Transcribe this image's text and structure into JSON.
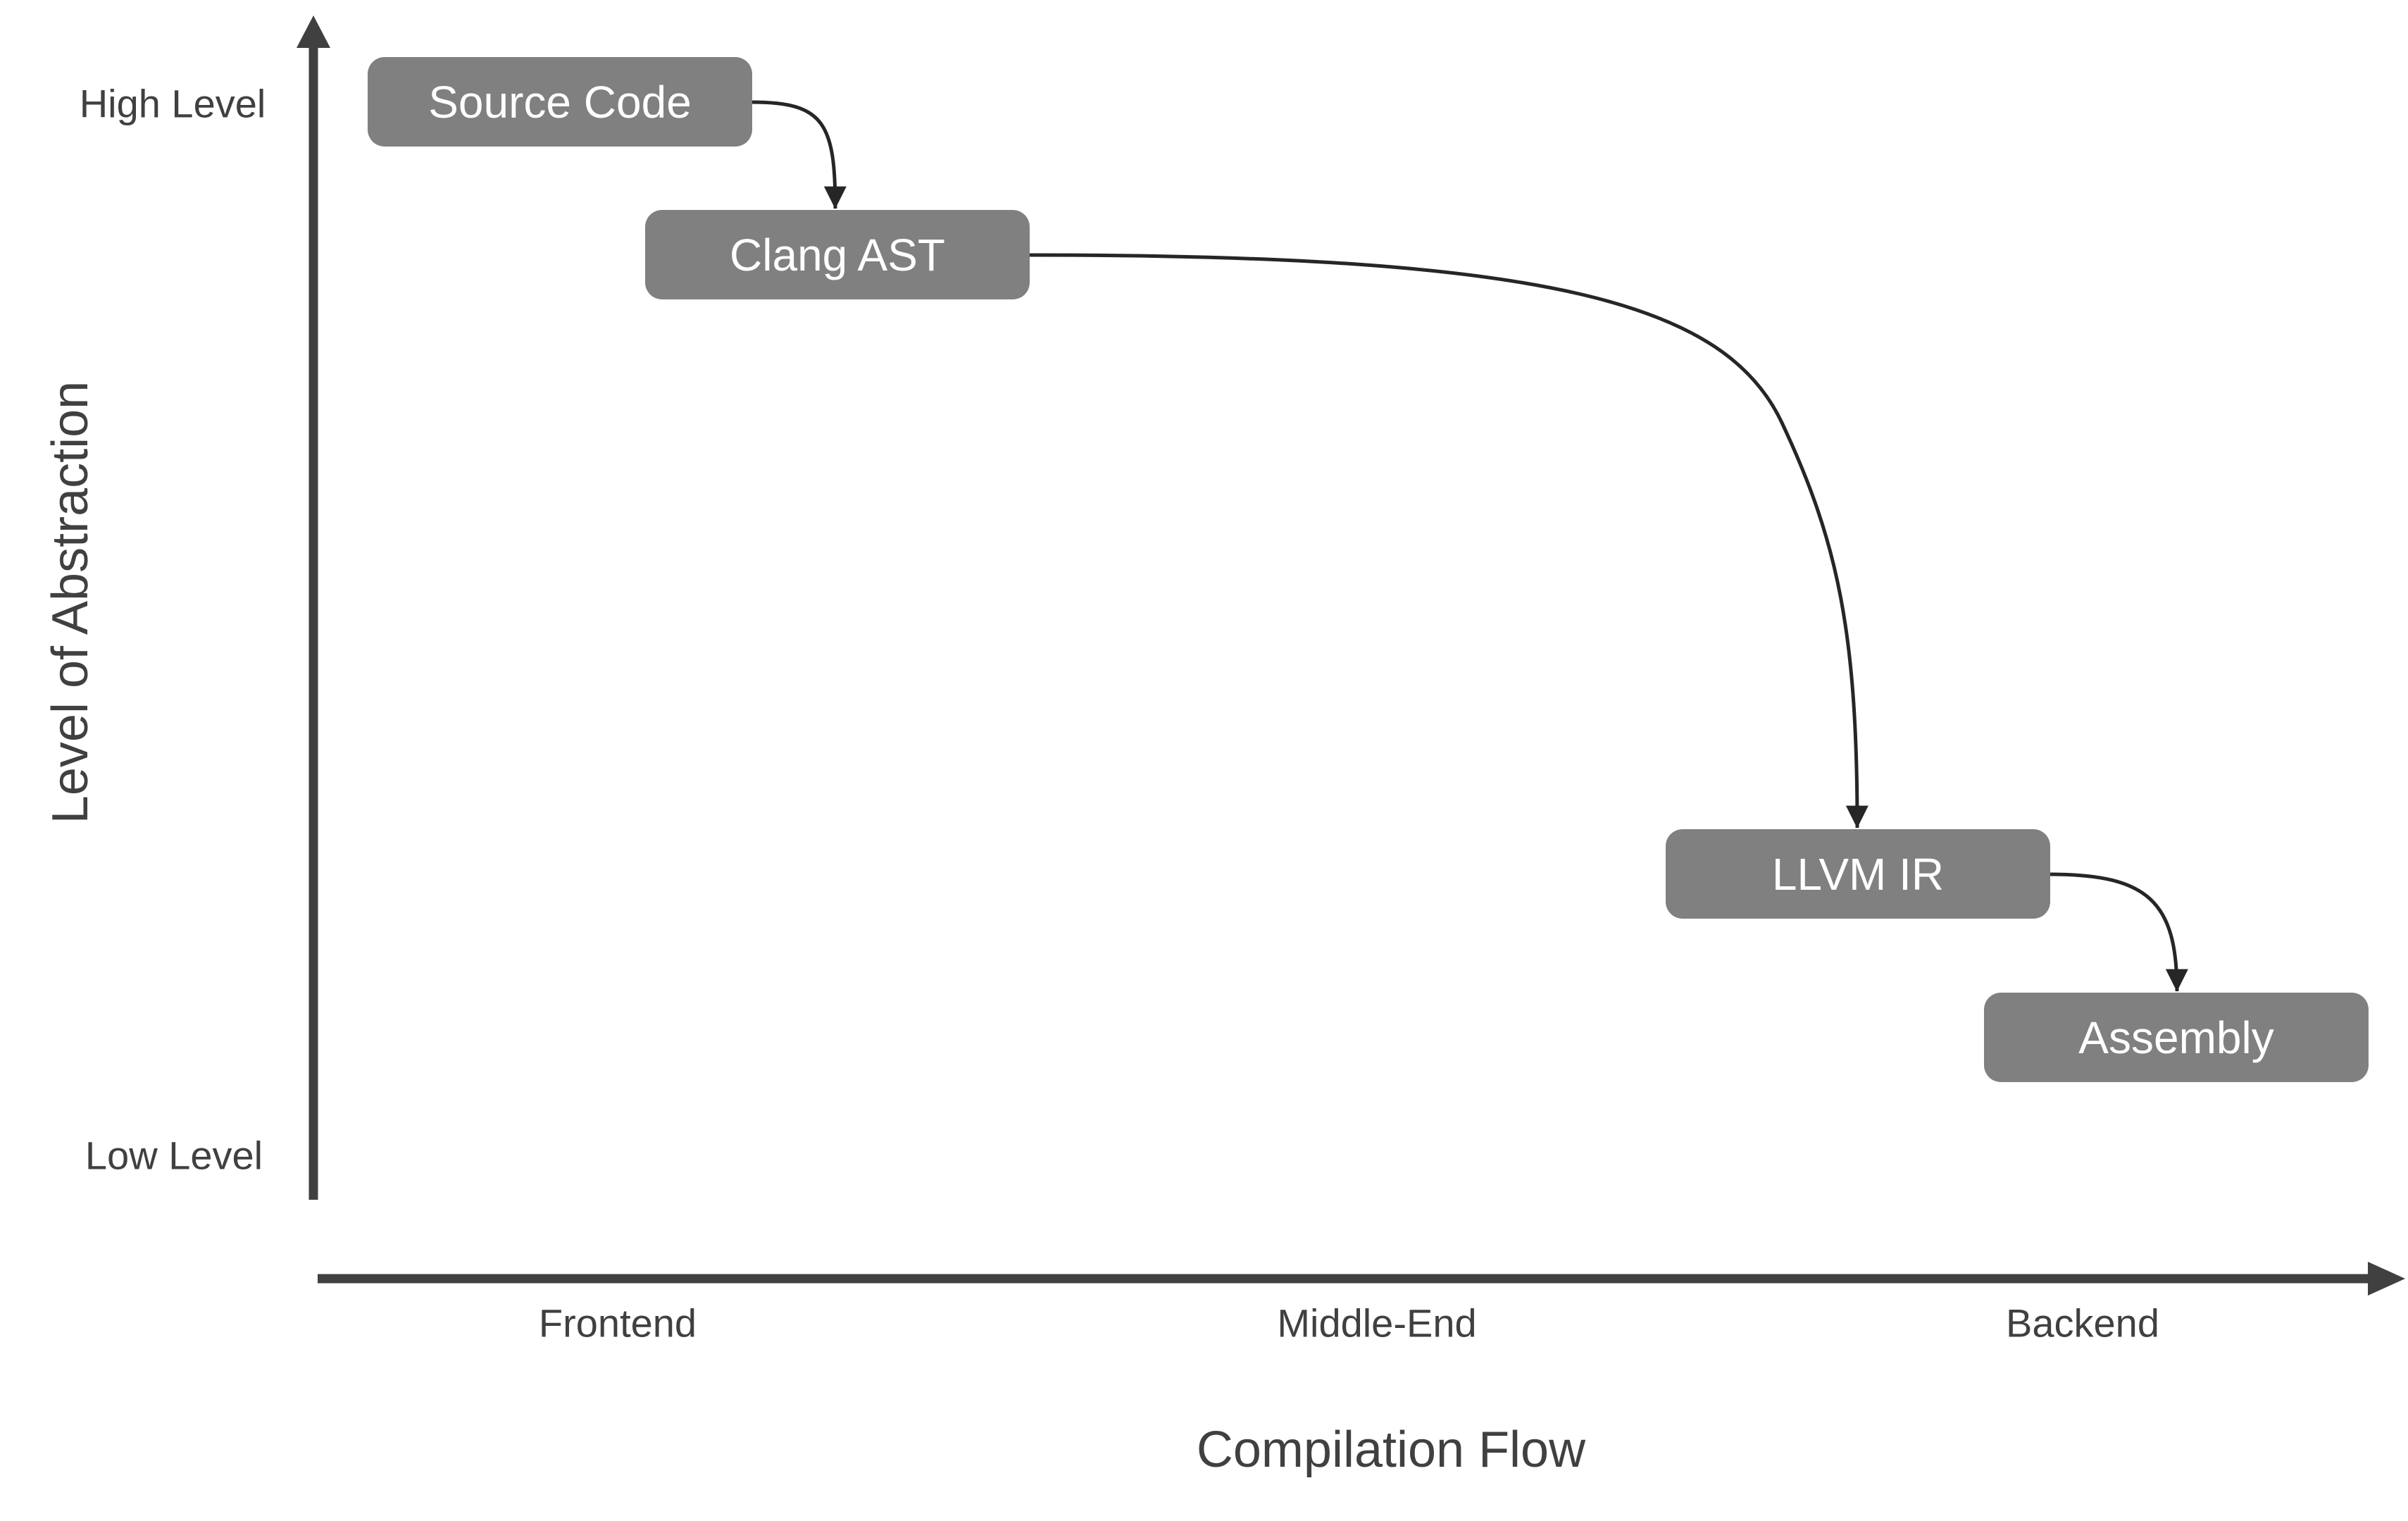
{
  "colors": {
    "box_fill": "#808080",
    "box_text": "#ffffff",
    "axis": "#404040",
    "edge": "#262626"
  },
  "y_axis": {
    "title": "Level of Abstraction",
    "top_label": "High Level",
    "bottom_label": "Low Level"
  },
  "x_axis": {
    "title": "Compilation Flow",
    "labels": [
      "Frontend",
      "Middle-End",
      "Backend"
    ]
  },
  "nodes": [
    {
      "label": "Source Code"
    },
    {
      "label": "Clang AST"
    },
    {
      "label": "LLVM IR"
    },
    {
      "label": "Assembly"
    }
  ],
  "edges": [
    {
      "from": "Source Code",
      "to": "Clang AST"
    },
    {
      "from": "Clang AST",
      "to": "LLVM IR"
    },
    {
      "from": "LLVM IR",
      "to": "Assembly"
    }
  ]
}
